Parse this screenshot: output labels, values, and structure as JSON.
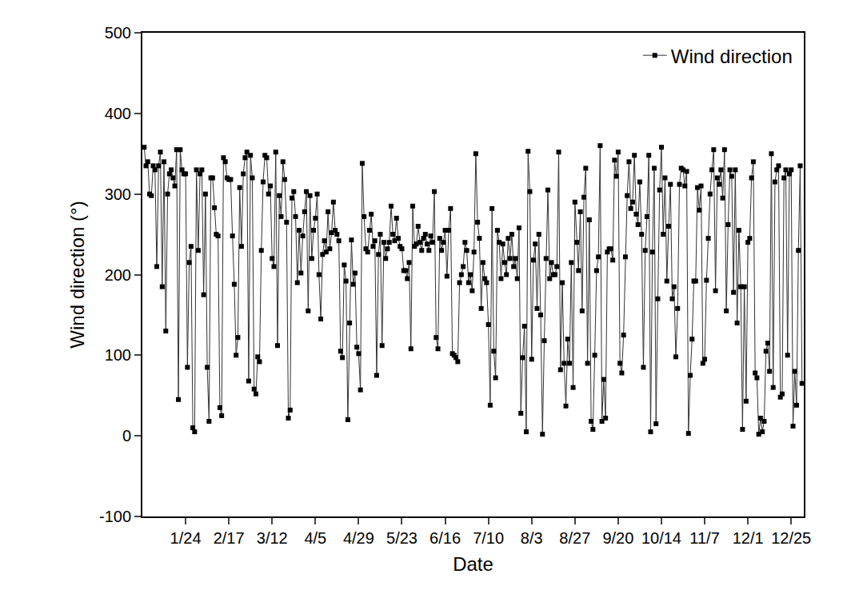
{
  "chart_data": {
    "type": "line",
    "x_label": "Date",
    "y_label": "Wind direction (°)",
    "legend": "top-right",
    "grid": false,
    "ylim": [
      -100,
      500
    ],
    "yticks": [
      -100,
      0,
      100,
      200,
      300,
      400,
      500
    ],
    "categories": [
      null,
      null,
      null,
      null,
      null,
      null,
      null,
      null,
      null,
      null,
      null,
      null,
      null,
      null,
      null,
      null,
      null,
      null,
      null,
      null,
      null,
      null,
      null,
      "1/24",
      null,
      null,
      null,
      null,
      null,
      null,
      null,
      null,
      null,
      null,
      null,
      null,
      null,
      null,
      null,
      null,
      null,
      null,
      null,
      null,
      null,
      null,
      null,
      "2/17",
      null,
      null,
      null,
      null,
      null,
      null,
      null,
      null,
      null,
      null,
      null,
      null,
      null,
      null,
      null,
      null,
      null,
      null,
      null,
      null,
      null,
      null,
      null,
      "3/12",
      null,
      null,
      null,
      null,
      null,
      null,
      null,
      null,
      null,
      null,
      null,
      null,
      null,
      null,
      null,
      null,
      null,
      null,
      null,
      null,
      null,
      null,
      null,
      "4/5",
      null,
      null,
      null,
      null,
      null,
      null,
      null,
      null,
      null,
      null,
      null,
      null,
      null,
      null,
      null,
      null,
      null,
      null,
      null,
      null,
      null,
      null,
      null,
      "4/29",
      null,
      null,
      null,
      null,
      null,
      null,
      null,
      null,
      null,
      null,
      null,
      null,
      null,
      null,
      null,
      null,
      null,
      null,
      null,
      null,
      null,
      null,
      null,
      "5/23",
      null,
      null,
      null,
      null,
      null,
      null,
      null,
      null,
      null,
      null,
      null,
      null,
      null,
      null,
      null,
      null,
      null,
      null,
      null,
      null,
      null,
      null,
      null,
      "6/16",
      null,
      null,
      null,
      null,
      null,
      null,
      null,
      null,
      null,
      null,
      null,
      null,
      null,
      null,
      null,
      null,
      null,
      null,
      null,
      null,
      null,
      null,
      null,
      "7/10",
      null,
      null,
      null,
      null,
      null,
      null,
      null,
      null,
      null,
      null,
      null,
      null,
      null,
      null,
      null,
      null,
      null,
      null,
      null,
      null,
      null,
      null,
      null,
      "8/3",
      null,
      null,
      null,
      null,
      null,
      null,
      null,
      null,
      null,
      null,
      null,
      null,
      null,
      null,
      null,
      null,
      null,
      null,
      null,
      null,
      null,
      null,
      null,
      "8/27",
      null,
      null,
      null,
      null,
      null,
      null,
      null,
      null,
      null,
      null,
      null,
      null,
      null,
      null,
      null,
      null,
      null,
      null,
      null,
      null,
      null,
      null,
      null,
      "9/20",
      null,
      null,
      null,
      null,
      null,
      null,
      null,
      null,
      null,
      null,
      null,
      null,
      null,
      null,
      null,
      null,
      null,
      null,
      null,
      null,
      null,
      null,
      null,
      "10/14",
      null,
      null,
      null,
      null,
      null,
      null,
      null,
      null,
      null,
      null,
      null,
      null,
      null,
      null,
      null,
      null,
      null,
      null,
      null,
      null,
      null,
      null,
      null,
      "11/7",
      null,
      null,
      null,
      null,
      null,
      null,
      null,
      null,
      null,
      null,
      null,
      null,
      null,
      null,
      null,
      null,
      null,
      null,
      null,
      null,
      null,
      null,
      null,
      "12/1",
      null,
      null,
      null,
      null,
      null,
      null,
      null,
      null,
      null,
      null,
      null,
      null,
      null,
      null,
      null,
      null,
      null,
      null,
      null,
      null,
      null,
      null,
      null,
      "12/25",
      null,
      null,
      null,
      null,
      null,
      null
    ],
    "series": [
      {
        "name": "Wind direction",
        "color": "#000000",
        "marker": "square",
        "line_style": "solid",
        "values": [
          358,
          335,
          340,
          300,
          298,
          335,
          330,
          210,
          335,
          352,
          185,
          340,
          130,
          300,
          325,
          330,
          320,
          310,
          355,
          45,
          355,
          330,
          325,
          325,
          85,
          215,
          235,
          10,
          5,
          330,
          230,
          325,
          330,
          175,
          300,
          85,
          18,
          320,
          320,
          283,
          250,
          248,
          35,
          25,
          345,
          340,
          320,
          318,
          318,
          248,
          188,
          100,
          122,
          308,
          235,
          325,
          345,
          352,
          68,
          348,
          320,
          58,
          52,
          98,
          92,
          230,
          315,
          348,
          345,
          300,
          310,
          220,
          210,
          352,
          112,
          298,
          272,
          340,
          318,
          265,
          22,
          32,
          295,
          303,
          272,
          190,
          255,
          202,
          248,
          278,
          303,
          155,
          298,
          220,
          255,
          270,
          300,
          200,
          145,
          225,
          242,
          228,
          278,
          232,
          252,
          290,
          255,
          250,
          242,
          105,
          97,
          212,
          192,
          20,
          140,
          243,
          188,
          202,
          110,
          102,
          57,
          338,
          272,
          232,
          228,
          255,
          275,
          235,
          242,
          75,
          225,
          250,
          112,
          240,
          220,
          232,
          240,
          285,
          250,
          242,
          270,
          245,
          235,
          232,
          205,
          205,
          195,
          215,
          108,
          285,
          235,
          238,
          260,
          240,
          230,
          245,
          250,
          238,
          230,
          248,
          240,
          303,
          122,
          108,
          245,
          230,
          240,
          255,
          198,
          255,
          282,
          102,
          100,
          97,
          92,
          190,
          200,
          210,
          240,
          230,
          190,
          200,
          180,
          228,
          350,
          265,
          245,
          158,
          215,
          195,
          190,
          138,
          38,
          282,
          105,
          72,
          255,
          240,
          195,
          238,
          215,
          200,
          245,
          220,
          250,
          210,
          220,
          195,
          258,
          28,
          97,
          136,
          5,
          353,
          303,
          95,
          218,
          238,
          158,
          250,
          150,
          2,
          118,
          220,
          305,
          195,
          215,
          200,
          200,
          210,
          352,
          82,
          190,
          90,
          37,
          120,
          90,
          215,
          60,
          290,
          240,
          205,
          278,
          155,
          296,
          332,
          90,
          268,
          18,
          8,
          100,
          205,
          222,
          360,
          18,
          70,
          22,
          228,
          232,
          232,
          218,
          342,
          322,
          352,
          90,
          78,
          125,
          222,
          298,
          340,
          282,
          290,
          348,
          275,
          262,
          315,
          250,
          85,
          230,
          272,
          348,
          5,
          228,
          332,
          15,
          170,
          305,
          358,
          250,
          320,
          192,
          260,
          312,
          170,
          185,
          98,
          158,
          312,
          332,
          330,
          310,
          328,
          3,
          75,
          120,
          192,
          192,
          308,
          280,
          310,
          90,
          95,
          193,
          245,
          300,
          330,
          355,
          180,
          320,
          312,
          330,
          295,
          355,
          155,
          262,
          330,
          322,
          178,
          330,
          140,
          255,
          185,
          8,
          185,
          43,
          240,
          245,
          320,
          340,
          78,
          72,
          2,
          22,
          5,
          18,
          105,
          115,
          80,
          350,
          60,
          315,
          330,
          335,
          48,
          52,
          320,
          330,
          100,
          325,
          330,
          12,
          80,
          38,
          230,
          335,
          65
        ]
      }
    ]
  }
}
